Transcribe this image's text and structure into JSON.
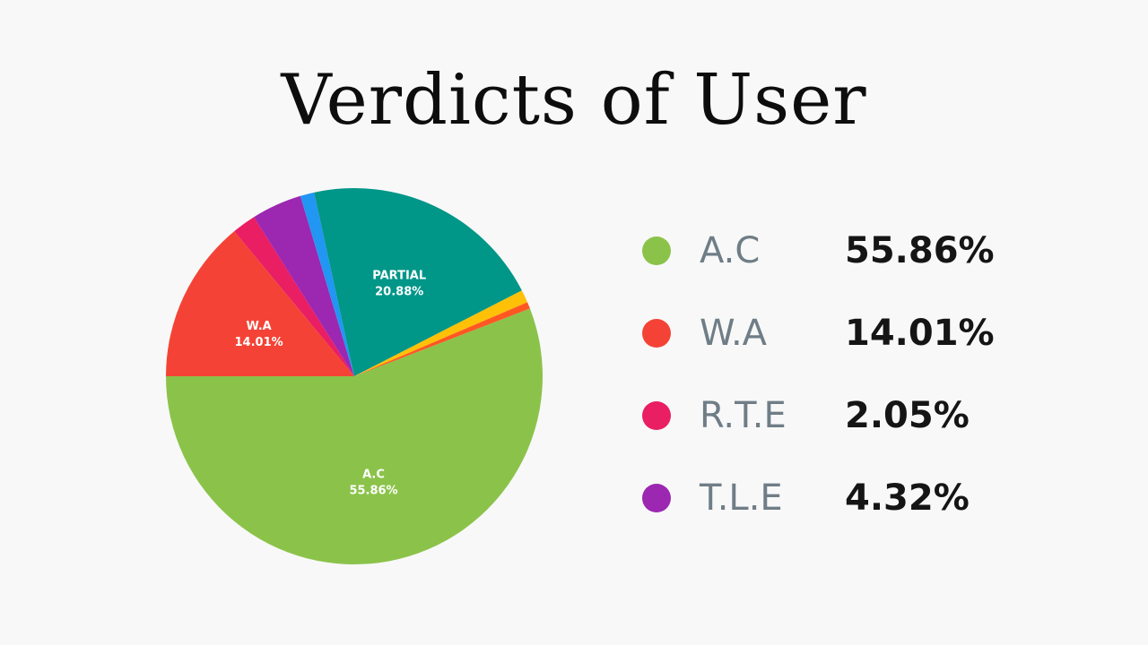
{
  "chart_data": {
    "type": "pie",
    "title": "Verdicts of User",
    "slices": [
      {
        "label": "A.C",
        "value": 55.86,
        "display": "55.86%",
        "color": "#8bc34a",
        "show_label": true
      },
      {
        "label": "W.A",
        "value": 14.01,
        "display": "14.01%",
        "color": "#f44336",
        "show_label": true
      },
      {
        "label": "R.T.E",
        "value": 2.05,
        "display": "2.05%",
        "color": "#e91e63",
        "show_label": false
      },
      {
        "label": "T.L.E",
        "value": 4.32,
        "display": "4.32%",
        "color": "#9c27b0",
        "show_label": false
      },
      {
        "label": "",
        "value": 1.2,
        "display": "",
        "color": "#2196f3",
        "show_label": false
      },
      {
        "label": "PARTIAL",
        "value": 20.88,
        "display": "20.88%",
        "color": "#009688",
        "show_label": true
      },
      {
        "label": "",
        "value": 1.1,
        "display": "",
        "color": "#ffc107",
        "show_label": false
      },
      {
        "label": "",
        "value": 0.58,
        "display": "",
        "color": "#ff5722",
        "show_label": false
      }
    ],
    "legend": [
      {
        "label": "A.C",
        "value": "55.86%",
        "color": "#8bc34a"
      },
      {
        "label": "W.A",
        "value": "14.01%",
        "color": "#f44336"
      },
      {
        "label": "R.T.E",
        "value": "2.05%",
        "color": "#e91e63"
      },
      {
        "label": "T.L.E",
        "value": "4.32%",
        "color": "#9c27b0"
      }
    ],
    "legend_placement": "right"
  }
}
